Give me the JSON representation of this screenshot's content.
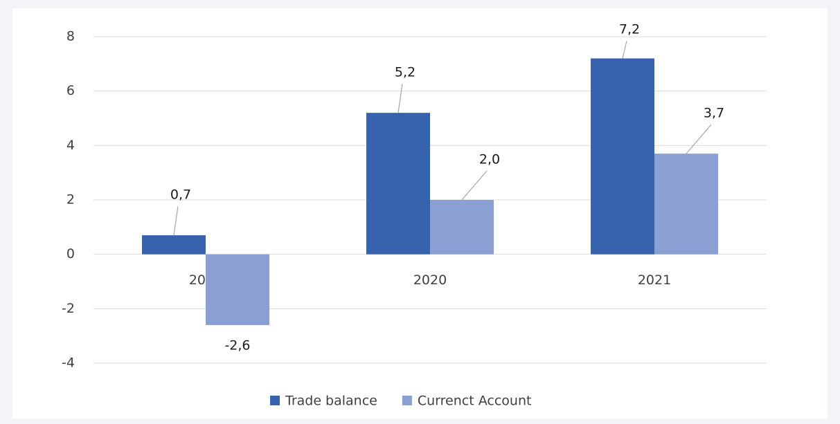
{
  "chart_data": {
    "type": "bar",
    "categories": [
      "2019",
      "2020",
      "2021"
    ],
    "series": [
      {
        "name": "Trade balance",
        "color": "#3762ad",
        "values": [
          0.7,
          5.2,
          7.2
        ],
        "value_labels": [
          "0,7",
          "5,2",
          "7,2"
        ]
      },
      {
        "name": "Currenct Account",
        "color": "#8aa0d2",
        "values": [
          -2.6,
          2.0,
          3.7
        ],
        "value_labels": [
          "-2,6",
          "2,0",
          "3,7"
        ]
      }
    ],
    "ylim": [
      -4,
      8
    ],
    "yticks": [
      -4,
      -2,
      0,
      2,
      4,
      6,
      8
    ],
    "grid": true,
    "legend": "bottom"
  }
}
